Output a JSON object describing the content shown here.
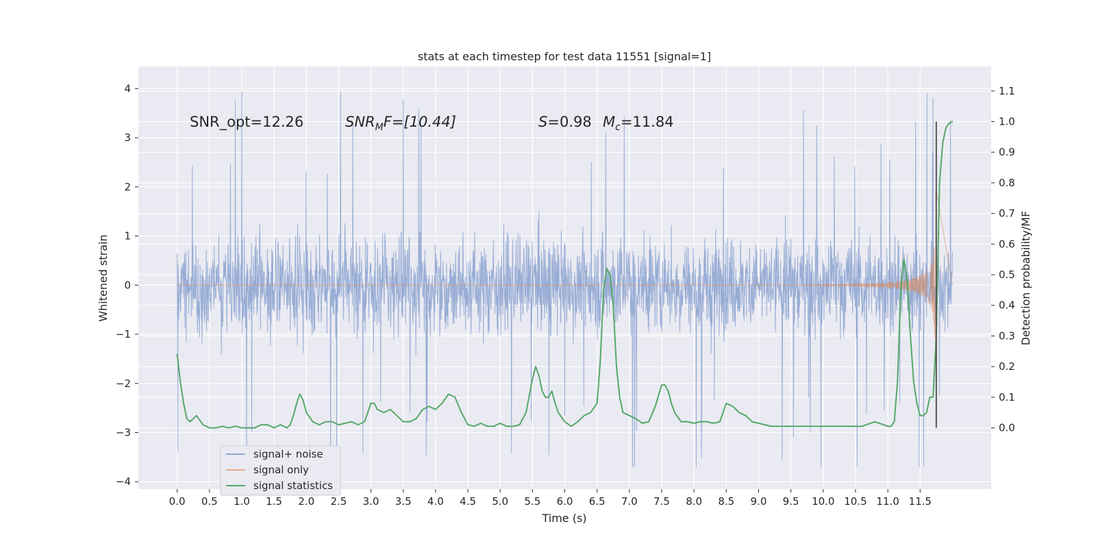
{
  "chart_data": {
    "type": "line",
    "title": "stats at each timestep for test data 11551 [signal=1]",
    "xlabel": "Time (s)",
    "ylabel": "Whitened strain",
    "ylabel_right": "Detection probability/MF",
    "xlim": [
      -0.6,
      12.6
    ],
    "ylim": [
      -4.15,
      4.45
    ],
    "ylim_right": [
      -0.2,
      1.18
    ],
    "x_ticks": [
      "0.0",
      "0.5",
      "1.0",
      "1.5",
      "2.0",
      "2.5",
      "3.0",
      "3.5",
      "4.0",
      "4.5",
      "5.0",
      "5.5",
      "6.0",
      "6.5",
      "7.0",
      "7.5",
      "8.0",
      "8.5",
      "9.0",
      "9.5",
      "10.0",
      "10.5",
      "11.0",
      "11.5"
    ],
    "y_ticks": [
      "4",
      "3",
      "2",
      "1",
      "0",
      "−1",
      "−2",
      "−3",
      "−4"
    ],
    "y_tick_values": [
      4,
      3,
      2,
      1,
      0,
      -1,
      -2,
      -3,
      -4
    ],
    "y_right_ticks": [
      "1.1",
      "1.0",
      "0.9",
      "0.8",
      "0.7",
      "0.6",
      "0.5",
      "0.4",
      "0.3",
      "0.2",
      "0.1",
      "0.0"
    ],
    "y_right_tick_values": [
      1.1,
      1.0,
      0.9,
      0.8,
      0.7,
      0.6,
      0.5,
      0.4,
      0.3,
      0.2,
      0.1,
      0.0
    ],
    "annotations": {
      "snr_opt": "SNR_opt=12.26",
      "snr_mf_main": "SNR",
      "snr_mf_sub": "M",
      "snr_mf_tail": "F=[10.44]",
      "s_main": "S",
      "s_value": "=0.98",
      "mc_main": "M",
      "mc_sub": "c",
      "mc_value": "=11.84"
    },
    "legend": {
      "location": "lower-left",
      "entries": [
        "signal+ noise",
        "signal only",
        "signal statistics"
      ]
    },
    "series": [
      {
        "name": "signal+ noise",
        "color": "#8fa6d2",
        "t_start": 0.0,
        "t_end": 12.0,
        "band_upper": 1.35,
        "band_lower": -1.55,
        "spike_max": 4.1,
        "spike_min": -3.7
      },
      {
        "name": "signal only",
        "color": "#dd8452",
        "t_start": 0.0,
        "t_end": 11.75,
        "max_amplitude": 2.0
      },
      {
        "name": "signal statistics",
        "color": "#55a868",
        "x": [
          0.0,
          0.05,
          0.1,
          0.15,
          0.2,
          0.3,
          0.4,
          0.5,
          0.6,
          0.7,
          0.8,
          0.9,
          1.0,
          1.1,
          1.2,
          1.3,
          1.4,
          1.5,
          1.6,
          1.7,
          1.75,
          1.8,
          1.85,
          1.9,
          1.95,
          2.0,
          2.1,
          2.2,
          2.3,
          2.4,
          2.5,
          2.6,
          2.7,
          2.8,
          2.9,
          2.95,
          3.0,
          3.05,
          3.1,
          3.2,
          3.3,
          3.4,
          3.5,
          3.6,
          3.7,
          3.8,
          3.9,
          4.0,
          4.1,
          4.2,
          4.3,
          4.4,
          4.5,
          4.6,
          4.7,
          4.8,
          4.9,
          5.0,
          5.1,
          5.2,
          5.3,
          5.4,
          5.5,
          5.55,
          5.6,
          5.65,
          5.7,
          5.75,
          5.8,
          5.85,
          5.9,
          6.0,
          6.1,
          6.2,
          6.3,
          6.4,
          6.5,
          6.55,
          6.6,
          6.65,
          6.7,
          6.75,
          6.8,
          6.85,
          6.9,
          7.0,
          7.1,
          7.2,
          7.3,
          7.4,
          7.5,
          7.55,
          7.6,
          7.65,
          7.7,
          7.8,
          7.9,
          8.0,
          8.1,
          8.2,
          8.3,
          8.4,
          8.5,
          8.6,
          8.7,
          8.8,
          8.9,
          9.0,
          9.2,
          9.4,
          9.6,
          9.8,
          10.0,
          10.2,
          10.4,
          10.6,
          10.8,
          11.0,
          11.05,
          11.1,
          11.15,
          11.2,
          11.25,
          11.3,
          11.35,
          11.4,
          11.45,
          11.5,
          11.55,
          11.6,
          11.65,
          11.7,
          11.75,
          11.8,
          11.85,
          11.9,
          11.95,
          12.0
        ],
        "values": [
          0.24,
          0.15,
          0.08,
          0.03,
          0.02,
          0.04,
          0.01,
          0.0,
          0.0,
          0.005,
          0.0,
          0.005,
          0.0,
          0.0,
          0.0,
          0.01,
          0.01,
          0.0,
          0.01,
          0.0,
          0.01,
          0.04,
          0.08,
          0.11,
          0.09,
          0.05,
          0.02,
          0.01,
          0.02,
          0.02,
          0.01,
          0.015,
          0.02,
          0.01,
          0.02,
          0.05,
          0.08,
          0.08,
          0.06,
          0.05,
          0.06,
          0.04,
          0.02,
          0.02,
          0.03,
          0.06,
          0.07,
          0.06,
          0.08,
          0.11,
          0.1,
          0.05,
          0.01,
          0.005,
          0.015,
          0.005,
          0.005,
          0.015,
          0.005,
          0.005,
          0.01,
          0.05,
          0.16,
          0.2,
          0.17,
          0.12,
          0.1,
          0.1,
          0.12,
          0.08,
          0.05,
          0.02,
          0.005,
          0.02,
          0.04,
          0.05,
          0.08,
          0.22,
          0.45,
          0.52,
          0.5,
          0.4,
          0.2,
          0.1,
          0.05,
          0.04,
          0.03,
          0.015,
          0.02,
          0.07,
          0.14,
          0.14,
          0.12,
          0.08,
          0.05,
          0.02,
          0.02,
          0.015,
          0.02,
          0.02,
          0.015,
          0.02,
          0.08,
          0.07,
          0.05,
          0.04,
          0.02,
          0.015,
          0.005,
          0.005,
          0.005,
          0.005,
          0.005,
          0.005,
          0.005,
          0.005,
          0.02,
          0.005,
          0.005,
          0.02,
          0.15,
          0.45,
          0.55,
          0.48,
          0.3,
          0.15,
          0.08,
          0.04,
          0.04,
          0.05,
          0.1,
          0.1,
          0.3,
          0.8,
          0.93,
          0.98,
          0.995,
          1.0
        ]
      }
    ],
    "vertical_line": {
      "x": 11.75,
      "color": "#555555",
      "y_top": 1.0,
      "y_bottom": 0.0
    }
  }
}
